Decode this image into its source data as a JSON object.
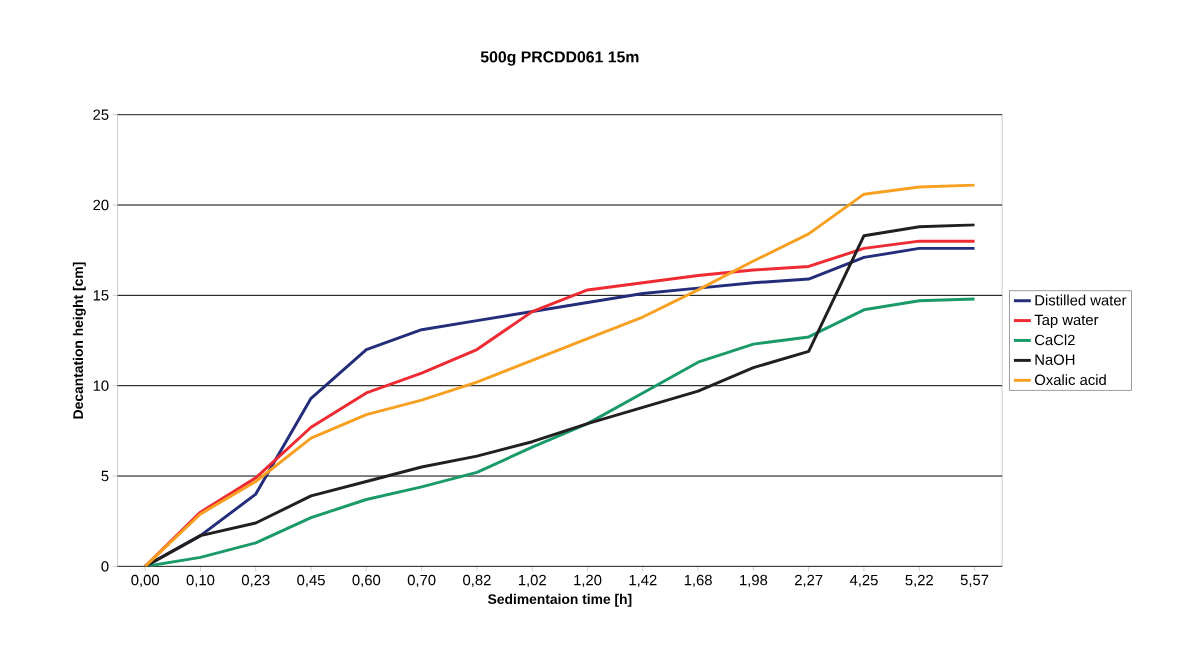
{
  "chart_data": {
    "type": "line",
    "title": "500g PRCDD061 15m",
    "xlabel": "Sedimentaion time [h]",
    "ylabel": "Decantation height [cm]",
    "categories": [
      "0,00",
      "0,10",
      "0,23",
      "0,45",
      "0,60",
      "0,70",
      "0,82",
      "1,02",
      "1,20",
      "1,42",
      "1,68",
      "1,98",
      "2,27",
      "4,25",
      "5,22",
      "5,57"
    ],
    "series": [
      {
        "name": "Distilled water",
        "color": "#232d7a",
        "values": [
          0,
          1.7,
          4.0,
          9.3,
          12.0,
          13.1,
          13.6,
          14.1,
          14.6,
          15.1,
          15.4,
          15.7,
          15.9,
          17.1,
          17.6,
          17.6
        ]
      },
      {
        "name": "Tap water",
        "color": "#ee2a32",
        "values": [
          0,
          3.0,
          4.9,
          7.7,
          9.6,
          10.7,
          12.0,
          14.1,
          15.3,
          15.7,
          16.1,
          16.4,
          16.6,
          17.6,
          18.0,
          18.0
        ]
      },
      {
        "name": "CaCl2",
        "color": "#1a9a68",
        "values": [
          0,
          0.5,
          1.3,
          2.7,
          3.7,
          4.4,
          5.2,
          6.6,
          7.9,
          9.6,
          11.3,
          12.3,
          12.7,
          14.2,
          14.7,
          14.8
        ]
      },
      {
        "name": "NaOH",
        "color": "#231f20",
        "values": [
          0,
          1.7,
          2.4,
          3.9,
          4.7,
          5.5,
          6.1,
          6.9,
          7.9,
          8.8,
          9.7,
          11.0,
          11.9,
          18.3,
          18.8,
          18.9
        ]
      },
      {
        "name": "Oxalic acid",
        "color": "#f7a021",
        "values": [
          0,
          2.9,
          4.7,
          7.1,
          8.4,
          9.2,
          10.2,
          11.4,
          12.6,
          13.8,
          15.3,
          16.9,
          18.4,
          20.6,
          21.0,
          21.1
        ]
      }
    ],
    "ylim": [
      0,
      25
    ],
    "yticks": [
      0,
      5,
      10,
      15,
      20,
      25
    ],
    "grid": "y",
    "legend": "right",
    "marker": "none",
    "line_style": "solid"
  }
}
